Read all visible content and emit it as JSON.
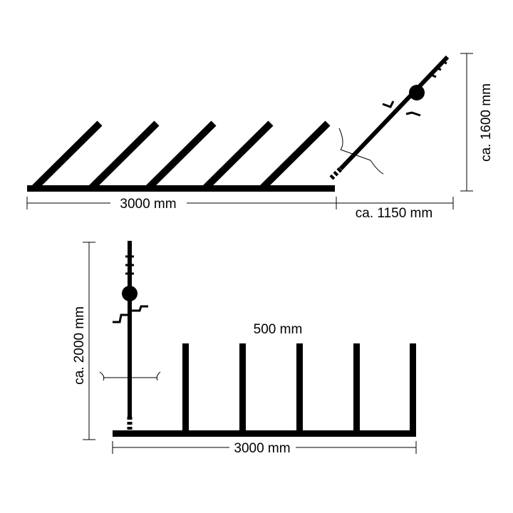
{
  "top_view": {
    "length": "3000 mm",
    "overhang": "ca. 1150 mm",
    "height": "ca. 1600 mm"
  },
  "side_view": {
    "spacing": "500 mm",
    "height": "ca. 2000 mm",
    "length": "3000 mm"
  }
}
